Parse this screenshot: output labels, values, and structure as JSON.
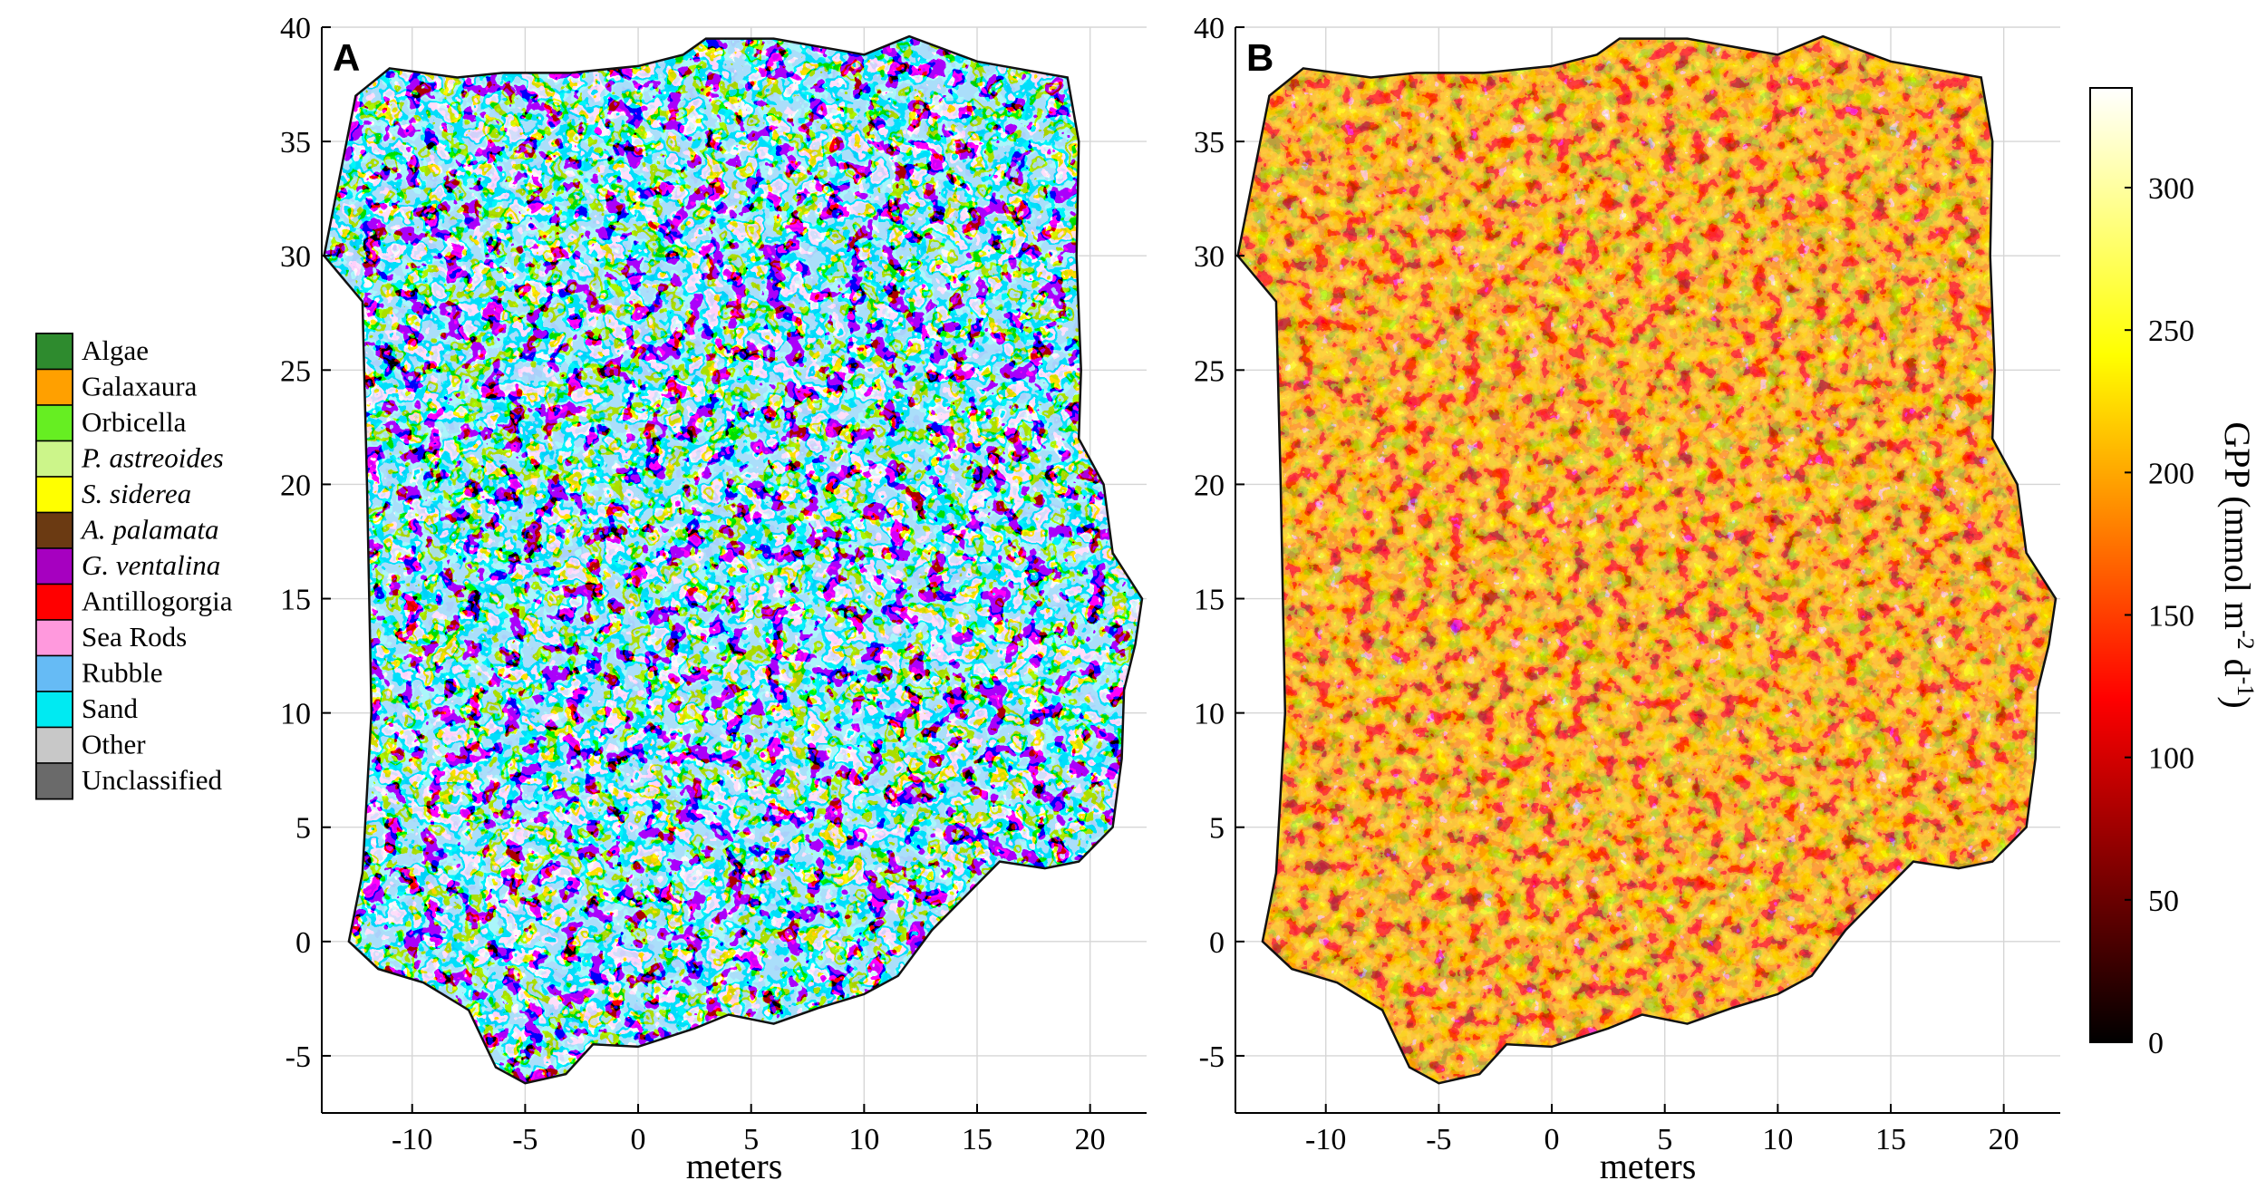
{
  "figure": {
    "colors": {
      "background": "#ffffff",
      "grid": "#d6d6d6",
      "axis": "#000000"
    }
  },
  "chart_data": [
    {
      "type": "heatmap",
      "panel_label": "A",
      "xlabel": "meters",
      "ylabel": "",
      "xlim": [
        -14,
        22.5
      ],
      "ylim": [
        -7.5,
        40
      ],
      "x_ticks": [
        -10,
        -5,
        0,
        5,
        10,
        15,
        20
      ],
      "y_ticks": [
        -5,
        0,
        5,
        10,
        15,
        20,
        25,
        30,
        35,
        40
      ],
      "grid": true,
      "legend_position": "left",
      "legend": [
        {
          "label": "Algae",
          "color": "#2e8b2e",
          "italic": false
        },
        {
          "label": "Galaxaura",
          "color": "#ffa000",
          "italic": false
        },
        {
          "label": "Orbicella",
          "color": "#66ee22",
          "italic": false
        },
        {
          "label": "P. astreoides",
          "color": "#ccf58a",
          "italic": true
        },
        {
          "label": "S. siderea",
          "color": "#ffff00",
          "italic": true
        },
        {
          "label": "A. palamata",
          "color": "#6b3a12",
          "italic": true
        },
        {
          "label": "G. ventalina",
          "color": "#a600c0",
          "italic": true
        },
        {
          "label": "Antillogorgia",
          "color": "#ff0000",
          "italic": false
        },
        {
          "label": "Sea Rods",
          "color": "#ff99dd",
          "italic": false
        },
        {
          "label": "Rubble",
          "color": "#66bbf5",
          "italic": false
        },
        {
          "label": "Sand",
          "color": "#00eaf2",
          "italic": false
        },
        {
          "label": "Other",
          "color": "#c8c8c8",
          "italic": false
        },
        {
          "label": "Unclassified",
          "color": "#6a6a6a",
          "italic": false
        }
      ]
    },
    {
      "type": "heatmap",
      "panel_label": "B",
      "xlabel": "meters",
      "ylabel": "",
      "xlim": [
        -14,
        22.5
      ],
      "ylim": [
        -7.5,
        40
      ],
      "x_ticks": [
        -10,
        -5,
        0,
        5,
        10,
        15,
        20
      ],
      "y_ticks": [
        -5,
        0,
        5,
        10,
        15,
        20,
        25,
        30,
        35,
        40
      ],
      "grid": true,
      "colorbar": {
        "label": "GPP (mmol m-2 d-1)",
        "label_main": "GPP (mmol m",
        "label_sup1": "-2",
        "label_mid": " d",
        "label_sup2": "-1",
        "label_end": ")",
        "range": [
          0,
          335
        ],
        "ticks": [
          0,
          50,
          100,
          150,
          200,
          250,
          300
        ],
        "colormap": "hot",
        "position": "right"
      }
    }
  ]
}
